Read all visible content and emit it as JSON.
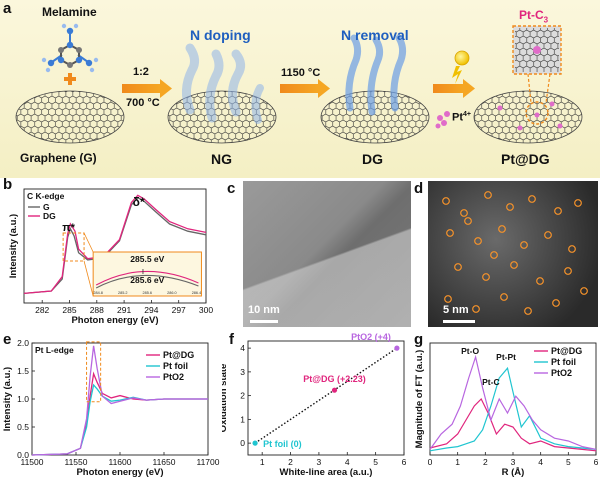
{
  "figure": {
    "panel_letters": [
      "a",
      "b",
      "c",
      "d",
      "e",
      "f",
      "g"
    ],
    "schematic": {
      "melamine": "Melamine",
      "graphene": "Graphene (G)",
      "ratio": "1:2",
      "temp1": "700 °C",
      "n_doping": "N doping",
      "ng": "NG",
      "temp2": "1150 °C",
      "n_removal": "N removal",
      "dg": "DG",
      "pt_ion": "Pt",
      "pt_ion_charge": "4+",
      "pt_dg": "Pt@DG",
      "pt_c3_main": "Pt-C",
      "pt_c3_sub": "3"
    },
    "panel_c": {
      "scalebar": "10 nm"
    },
    "panel_d": {
      "scalebar": "5 nm"
    }
  },
  "chart_data": [
    {
      "panel": "b",
      "type": "line",
      "title": "C K-edge",
      "xlabel": "Photon energy (eV)",
      "ylabel": "Intensity (a.u.)",
      "xlim": [
        280,
        300
      ],
      "xticks": [
        "282",
        "285",
        "288",
        "291",
        "294",
        "297",
        "300"
      ],
      "series": [
        {
          "name": "G",
          "color": "#666666",
          "x": [
            280,
            283,
            284.2,
            284.8,
            285.1,
            285.5,
            286.0,
            287.0,
            288.0,
            289.0,
            290.5,
            291.8,
            292.5,
            293.2,
            294.5,
            296,
            298,
            300
          ],
          "y": [
            0.08,
            0.1,
            0.2,
            0.55,
            0.62,
            0.56,
            0.42,
            0.36,
            0.37,
            0.4,
            0.52,
            0.82,
            0.88,
            0.85,
            0.76,
            0.66,
            0.6,
            0.57
          ]
        },
        {
          "name": "DG",
          "color": "#e0257d",
          "x": [
            280,
            283,
            284.2,
            284.8,
            285.1,
            285.6,
            286.0,
            287.0,
            288.0,
            289.0,
            290.5,
            291.8,
            292.5,
            293.2,
            294.5,
            296,
            298,
            300
          ],
          "y": [
            0.08,
            0.1,
            0.22,
            0.58,
            0.66,
            0.6,
            0.45,
            0.37,
            0.38,
            0.41,
            0.53,
            0.84,
            0.9,
            0.87,
            0.78,
            0.68,
            0.62,
            0.59
          ]
        }
      ],
      "annotations": [
        "π*",
        "δ*"
      ],
      "inset": {
        "labels": [
          "285.5 eV",
          "285.6 eV"
        ],
        "xticks": [
          "284.8",
          "285.2",
          "285.6",
          "286.0",
          "286.4"
        ]
      }
    },
    {
      "panel": "e",
      "type": "line",
      "title": "Pt L-edge",
      "xlabel": "Photon energy (eV)",
      "ylabel": "Intensity (a.u.)",
      "xlim": [
        11500,
        11700
      ],
      "ylim": [
        0,
        2.0
      ],
      "xticks": [
        "11500",
        "11550",
        "11600",
        "11650",
        "11700"
      ],
      "yticks": [
        "0.0",
        "0.5",
        "1.0",
        "1.5",
        "2.0"
      ],
      "series": [
        {
          "name": "Pt@DG",
          "color": "#e0257d",
          "x": [
            11500,
            11540,
            11555,
            11562,
            11566,
            11570,
            11574,
            11580,
            11590,
            11600,
            11615,
            11630,
            11650,
            11670,
            11700
          ],
          "y": [
            0.0,
            0.02,
            0.12,
            0.55,
            1.05,
            1.45,
            1.3,
            1.1,
            1.02,
            1.06,
            1.0,
            0.98,
            1.0,
            1.0,
            1.0
          ]
        },
        {
          "name": "Pt foil",
          "color": "#20c5d0",
          "x": [
            11500,
            11540,
            11555,
            11562,
            11566,
            11570,
            11574,
            11580,
            11590,
            11600,
            11615,
            11630,
            11650,
            11670,
            11700
          ],
          "y": [
            0.0,
            0.02,
            0.12,
            0.5,
            0.95,
            1.25,
            1.18,
            1.05,
            0.96,
            0.98,
            1.03,
            0.98,
            1.0,
            1.0,
            1.0
          ]
        },
        {
          "name": "PtO2",
          "color": "#b866e0",
          "x": [
            11500,
            11540,
            11555,
            11562,
            11566,
            11570,
            11574,
            11580,
            11590,
            11600,
            11615,
            11630,
            11650,
            11670,
            11700
          ],
          "y": [
            0.0,
            0.02,
            0.12,
            0.65,
            1.4,
            1.95,
            1.55,
            1.05,
            0.92,
            0.96,
            1.02,
            0.98,
            1.0,
            1.0,
            1.0
          ]
        }
      ]
    },
    {
      "panel": "f",
      "type": "scatter",
      "xlabel": "White-line area (a.u.)",
      "ylabel": "Oxidation state",
      "xlim": [
        0.5,
        6
      ],
      "ylim": [
        -0.5,
        4.3
      ],
      "xticks": [
        "1",
        "2",
        "3",
        "4",
        "5",
        "6"
      ],
      "yticks": [
        "0",
        "1",
        "2",
        "3",
        "4"
      ],
      "points": [
        {
          "label": "Pt foil (0)",
          "x": 0.75,
          "y": 0,
          "color": "#20c5d0"
        },
        {
          "label": "Pt@DG (+2.23)",
          "x": 3.55,
          "y": 2.23,
          "color": "#e0257d"
        },
        {
          "label": "PtO2 (+4)",
          "x": 5.75,
          "y": 4,
          "color": "#b866e0"
        }
      ],
      "fit_line": {
        "x": [
          0.75,
          5.75
        ],
        "y": [
          0,
          4
        ]
      }
    },
    {
      "panel": "g",
      "type": "line",
      "xlabel": "R (Å)",
      "ylabel": "Magnitude of FT (a.u.)",
      "xlim": [
        0,
        6
      ],
      "xticks": [
        "0",
        "1",
        "2",
        "3",
        "4",
        "5",
        "6"
      ],
      "annotations": [
        "Pt-O",
        "Pt-Pt",
        "Pt-C"
      ],
      "series": [
        {
          "name": "Pt@DG",
          "color": "#e0257d",
          "x": [
            0,
            0.6,
            1.0,
            1.3,
            1.6,
            1.85,
            2.1,
            2.4,
            2.7,
            3.0,
            3.3,
            3.6,
            4.0,
            4.5,
            5.0,
            5.5,
            6.0
          ],
          "y": [
            0.05,
            0.08,
            0.15,
            0.25,
            0.35,
            0.4,
            0.3,
            0.15,
            0.22,
            0.2,
            0.12,
            0.08,
            0.1,
            0.06,
            0.05,
            0.04,
            0.03
          ]
        },
        {
          "name": "Pt foil",
          "color": "#20c5d0",
          "x": [
            0,
            0.6,
            1.0,
            1.3,
            1.6,
            1.9,
            2.2,
            2.5,
            2.8,
            3.0,
            3.3,
            3.6,
            4.0,
            4.5,
            5.0,
            5.5,
            6.0
          ],
          "y": [
            0.03,
            0.05,
            0.06,
            0.08,
            0.1,
            0.18,
            0.35,
            0.55,
            0.62,
            0.45,
            0.2,
            0.28,
            0.12,
            0.08,
            0.06,
            0.05,
            0.04
          ]
        },
        {
          "name": "PtO2",
          "color": "#b866e0",
          "x": [
            0,
            0.4,
            0.8,
            1.1,
            1.4,
            1.65,
            1.9,
            2.2,
            2.5,
            2.8,
            3.1,
            3.4,
            3.7,
            4.0,
            4.5,
            5.0,
            5.5,
            6.0
          ],
          "y": [
            0.04,
            0.15,
            0.22,
            0.35,
            0.55,
            0.7,
            0.48,
            0.25,
            0.4,
            0.3,
            0.42,
            0.35,
            0.25,
            0.18,
            0.12,
            0.1,
            0.06,
            0.04
          ]
        }
      ]
    }
  ]
}
